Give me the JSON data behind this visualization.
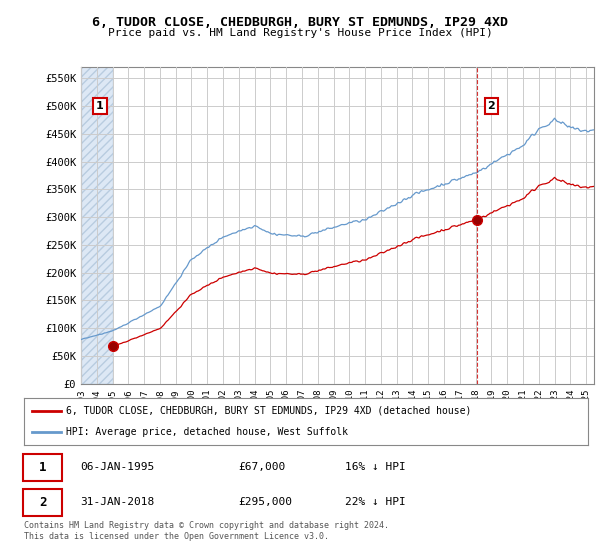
{
  "title_line1": "6, TUDOR CLOSE, CHEDBURGH, BURY ST EDMUNDS, IP29 4XD",
  "title_line2": "Price paid vs. HM Land Registry's House Price Index (HPI)",
  "ylabel_ticks": [
    "£0",
    "£50K",
    "£100K",
    "£150K",
    "£200K",
    "£250K",
    "£300K",
    "£350K",
    "£400K",
    "£450K",
    "£500K",
    "£550K"
  ],
  "ytick_values": [
    0,
    50000,
    100000,
    150000,
    200000,
    250000,
    300000,
    350000,
    400000,
    450000,
    500000,
    550000
  ],
  "xlim_start": 1993.0,
  "xlim_end": 2025.5,
  "ylim": [
    0,
    570000
  ],
  "hpi_color": "#6699cc",
  "price_color": "#cc0000",
  "dashed_line_color": "#cc0000",
  "point1_date": 1995.03,
  "point1_value": 67000,
  "point2_date": 2018.08,
  "point2_value": 295000,
  "legend_label1": "6, TUDOR CLOSE, CHEDBURGH, BURY ST EDMUNDS, IP29 4XD (detached house)",
  "legend_label2": "HPI: Average price, detached house, West Suffolk",
  "annotation1_label": "1",
  "annotation2_label": "2",
  "table_row1": [
    "1",
    "06-JAN-1995",
    "£67,000",
    "16% ↓ HPI"
  ],
  "table_row2": [
    "2",
    "31-JAN-2018",
    "£295,000",
    "22% ↓ HPI"
  ],
  "footnote": "Contains HM Land Registry data © Crown copyright and database right 2024.\nThis data is licensed under the Open Government Licence v3.0.",
  "background_color": "#ffffff",
  "grid_color": "#cccccc",
  "hatch_region_color": "#dde8f5",
  "hatch_pattern_color": "#c0cfe0"
}
